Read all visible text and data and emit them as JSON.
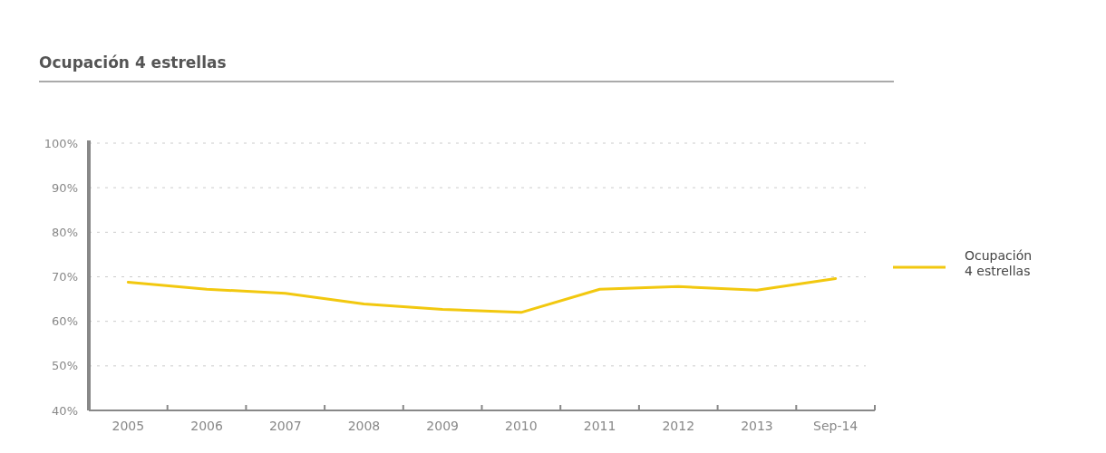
{
  "chart_data": {
    "type": "line",
    "title": "Ocupación 4 estrellas",
    "categories": [
      "2005",
      "2006",
      "2007",
      "2008",
      "2009",
      "2010",
      "2011",
      "2012",
      "2013",
      "Sep-14"
    ],
    "series": [
      {
        "name": "Ocupación\n4 estrellas",
        "color": "#f2c80f",
        "values": [
          68.8,
          67.2,
          66.3,
          63.9,
          62.7,
          62.0,
          67.2,
          67.8,
          67.0,
          69.6
        ]
      }
    ],
    "ylim": [
      40,
      100
    ],
    "yticks": [
      {
        "value": 40,
        "label": "40%"
      },
      {
        "value": 50,
        "label": "50%"
      },
      {
        "value": 60,
        "label": "60%"
      },
      {
        "value": 70,
        "label": "70%"
      },
      {
        "value": 80,
        "label": "80%"
      },
      {
        "value": 90,
        "label": "90%"
      },
      {
        "value": 100,
        "label": "100%"
      }
    ],
    "grid": "y",
    "legend": "right",
    "marker": "none",
    "line_style": "solid"
  }
}
